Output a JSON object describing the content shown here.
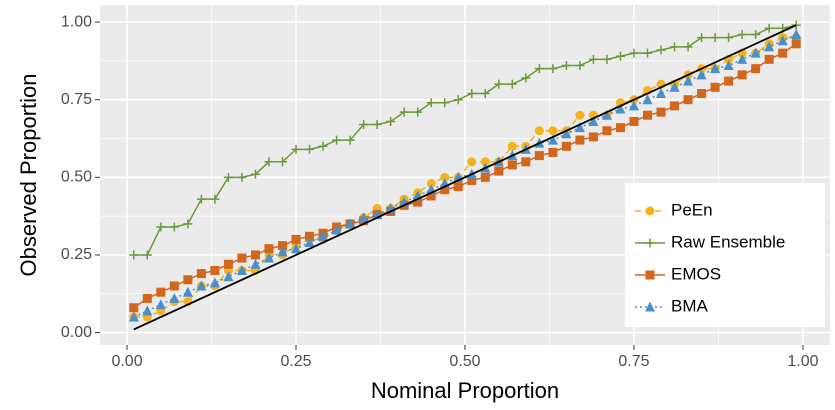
{
  "chart_data": {
    "type": "line",
    "x_label": "Nominal Proportion",
    "y_label": "Observed Proportion",
    "x": [
      0.01,
      0.03,
      0.05,
      0.07,
      0.09,
      0.11,
      0.13,
      0.15,
      0.17,
      0.19,
      0.21,
      0.23,
      0.25,
      0.27,
      0.29,
      0.31,
      0.33,
      0.35,
      0.37,
      0.39,
      0.41,
      0.43,
      0.45,
      0.47,
      0.49,
      0.51,
      0.53,
      0.55,
      0.57,
      0.59,
      0.61,
      0.63,
      0.65,
      0.67,
      0.69,
      0.71,
      0.73,
      0.75,
      0.77,
      0.79,
      0.81,
      0.83,
      0.85,
      0.87,
      0.89,
      0.91,
      0.93,
      0.95,
      0.97,
      0.99
    ],
    "series": [
      {
        "name": "PeEn",
        "color": "#f5b21b",
        "marker": "circle",
        "dash": "dashed",
        "values": [
          0.05,
          0.05,
          0.07,
          0.1,
          0.1,
          0.15,
          0.15,
          0.2,
          0.2,
          0.2,
          0.25,
          0.25,
          0.28,
          0.3,
          0.3,
          0.33,
          0.35,
          0.37,
          0.4,
          0.4,
          0.43,
          0.45,
          0.48,
          0.5,
          0.5,
          0.55,
          0.55,
          0.55,
          0.6,
          0.6,
          0.65,
          0.65,
          0.65,
          0.7,
          0.7,
          0.7,
          0.74,
          0.75,
          0.78,
          0.8,
          0.8,
          0.83,
          0.85,
          0.85,
          0.88,
          0.9,
          0.9,
          0.93,
          0.95,
          0.95
        ]
      },
      {
        "name": "Raw Ensemble",
        "color": "#6a9a3a",
        "marker": "plus",
        "dash": "solid",
        "values": [
          0.25,
          0.25,
          0.34,
          0.34,
          0.35,
          0.43,
          0.43,
          0.5,
          0.5,
          0.51,
          0.55,
          0.55,
          0.59,
          0.59,
          0.6,
          0.62,
          0.62,
          0.67,
          0.67,
          0.68,
          0.71,
          0.71,
          0.74,
          0.74,
          0.75,
          0.77,
          0.77,
          0.8,
          0.8,
          0.82,
          0.85,
          0.85,
          0.86,
          0.86,
          0.88,
          0.88,
          0.89,
          0.9,
          0.9,
          0.91,
          0.92,
          0.92,
          0.95,
          0.95,
          0.95,
          0.96,
          0.96,
          0.98,
          0.98,
          0.99
        ]
      },
      {
        "name": "EMOS",
        "color": "#d1661c",
        "marker": "square",
        "dash": "solid",
        "values": [
          0.08,
          0.11,
          0.13,
          0.15,
          0.17,
          0.19,
          0.2,
          0.22,
          0.24,
          0.25,
          0.27,
          0.28,
          0.3,
          0.31,
          0.32,
          0.34,
          0.35,
          0.36,
          0.38,
          0.39,
          0.41,
          0.42,
          0.44,
          0.46,
          0.47,
          0.49,
          0.5,
          0.52,
          0.54,
          0.55,
          0.57,
          0.58,
          0.6,
          0.62,
          0.63,
          0.65,
          0.66,
          0.68,
          0.7,
          0.71,
          0.73,
          0.75,
          0.77,
          0.79,
          0.81,
          0.83,
          0.85,
          0.88,
          0.9,
          0.93
        ]
      },
      {
        "name": "BMA",
        "color": "#4a8fc9",
        "marker": "triangle",
        "dash": "dotted",
        "values": [
          0.05,
          0.07,
          0.09,
          0.11,
          0.13,
          0.15,
          0.16,
          0.18,
          0.2,
          0.22,
          0.24,
          0.26,
          0.27,
          0.29,
          0.31,
          0.33,
          0.35,
          0.37,
          0.38,
          0.4,
          0.42,
          0.44,
          0.46,
          0.48,
          0.5,
          0.51,
          0.53,
          0.55,
          0.57,
          0.59,
          0.61,
          0.62,
          0.64,
          0.66,
          0.68,
          0.7,
          0.72,
          0.73,
          0.75,
          0.77,
          0.79,
          0.81,
          0.83,
          0.85,
          0.86,
          0.88,
          0.9,
          0.92,
          0.94,
          0.96
        ]
      }
    ],
    "xlim": [
      -0.04,
      1.04
    ],
    "ylim": [
      -0.04,
      1.055
    ],
    "xticks": [
      {
        "value": 0,
        "label": "0.00"
      },
      {
        "value": 0.25,
        "label": "0.25"
      },
      {
        "value": 0.5,
        "label": "0.50"
      },
      {
        "value": 0.75,
        "label": "0.75"
      },
      {
        "value": 1,
        "label": "1.00"
      }
    ],
    "yticks": [
      {
        "value": 0,
        "label": "0.00"
      },
      {
        "value": 0.25,
        "label": "0.25"
      },
      {
        "value": 0.5,
        "label": "0.50"
      },
      {
        "value": 0.75,
        "label": "0.75"
      },
      {
        "value": 1,
        "label": "1.00"
      }
    ],
    "grid": true,
    "legend": "bottom-right",
    "reference_line": true
  }
}
